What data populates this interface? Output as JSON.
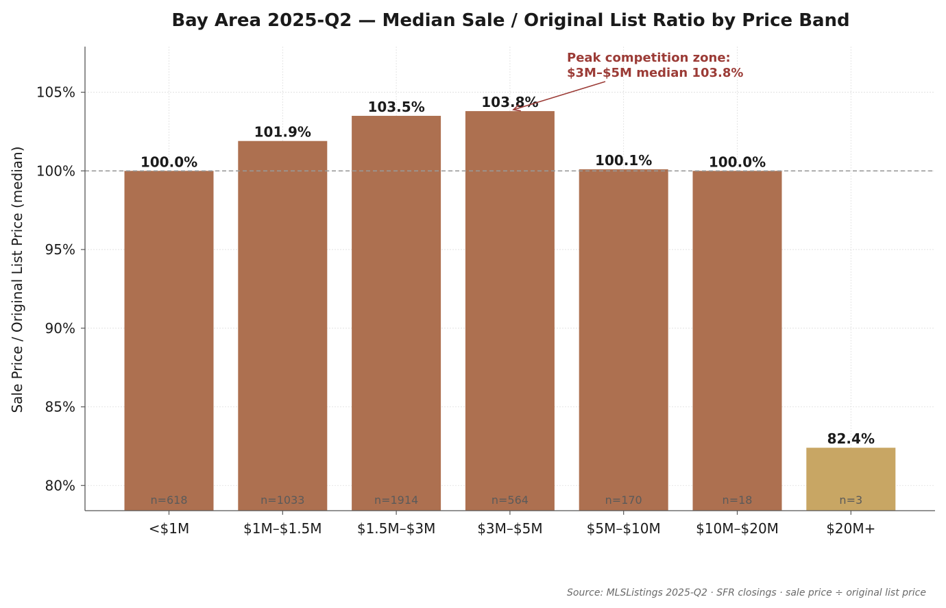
{
  "colors": {
    "bar": "#ad7050",
    "bar_highlight": "#c8a664",
    "annotation": "#9b3b36",
    "reference_line": "#999999",
    "grid": "#dddddd",
    "axis": "#555555"
  },
  "chart_data": {
    "type": "bar",
    "title": "Bay Area 2025-Q2 — Median Sale / Original List Ratio by Price Band",
    "xlabel": "",
    "ylabel": "Sale Price / Original List Price (median)",
    "categories": [
      "<$1M",
      "$1M–$1.5M",
      "$1.5M–$3M",
      "$3M–$5M",
      "$5M–$10M",
      "$10M–$20M",
      "$20M+"
    ],
    "values": [
      100.0,
      101.9,
      103.5,
      103.8,
      100.1,
      100.0,
      82.4
    ],
    "value_labels": [
      "100.0%",
      "101.9%",
      "103.5%",
      "103.8%",
      "100.1%",
      "100.0%",
      "82.4%"
    ],
    "counts": [
      "n=618",
      "n=1033",
      "n=1914",
      "n=564",
      "n=170",
      "n=18",
      "n=3"
    ],
    "highlight": [
      false,
      false,
      false,
      false,
      false,
      false,
      true
    ],
    "ylim": [
      78.4,
      107.9
    ],
    "yticks": [
      80,
      85,
      90,
      95,
      100,
      105
    ],
    "ytick_labels": [
      "80%",
      "85%",
      "90%",
      "95%",
      "100%",
      "105%"
    ],
    "reference_line": 100,
    "grid": true,
    "annotation": {
      "lines": [
        "Peak competition zone:",
        "$3M–$5M median 103.8%"
      ],
      "target_category": "$3M–$5M",
      "target_value": 103.8
    }
  },
  "source_note": "Source: MLSListings 2025-Q2 · SFR closings · sale price ÷ original list price"
}
